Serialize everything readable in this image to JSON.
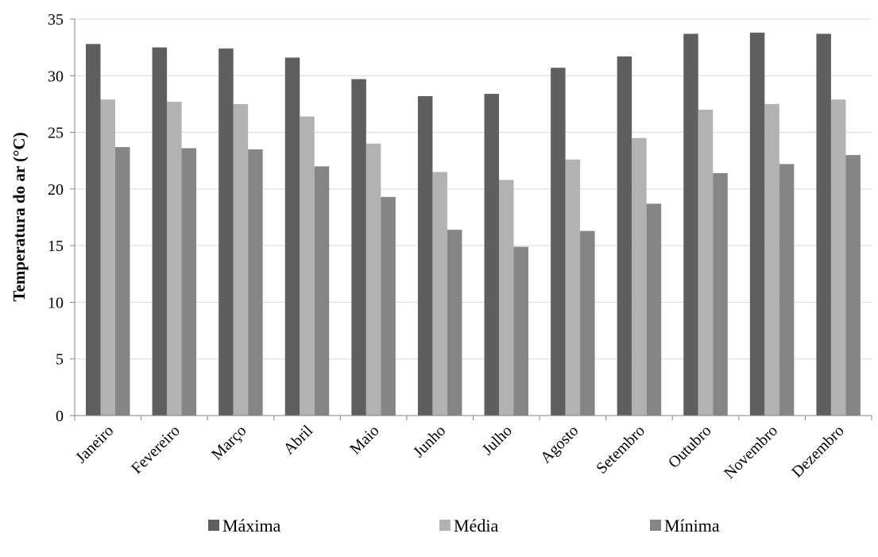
{
  "chart_data": {
    "type": "bar",
    "title": "",
    "xlabel": "",
    "ylabel": "Temperatura do ar (°C)",
    "ylim": [
      0,
      35
    ],
    "yticks": [
      0,
      5,
      10,
      15,
      20,
      25,
      30,
      35
    ],
    "grid": true,
    "legend_position": "bottom",
    "categories": [
      "Janeiro",
      "Fevereiro",
      "Março",
      "Abril",
      "Maio",
      "Junho",
      "Julho",
      "Agosto",
      "Setembro",
      "Outubro",
      "Novembro",
      "Dezembro"
    ],
    "series": [
      {
        "name": "Máxima",
        "color": "#5f5f5f",
        "values": [
          32.8,
          32.5,
          32.4,
          31.6,
          29.7,
          28.2,
          28.4,
          30.7,
          31.7,
          33.7,
          33.8,
          33.7
        ]
      },
      {
        "name": "Média",
        "color": "#b2b2b2",
        "values": [
          27.9,
          27.7,
          27.5,
          26.4,
          24.0,
          21.5,
          20.8,
          22.6,
          24.5,
          27.0,
          27.5,
          27.9
        ]
      },
      {
        "name": "Mínima",
        "color": "#858585",
        "values": [
          23.7,
          23.6,
          23.5,
          22.0,
          19.3,
          16.4,
          14.9,
          16.3,
          18.7,
          21.4,
          22.2,
          23.0
        ]
      }
    ]
  }
}
